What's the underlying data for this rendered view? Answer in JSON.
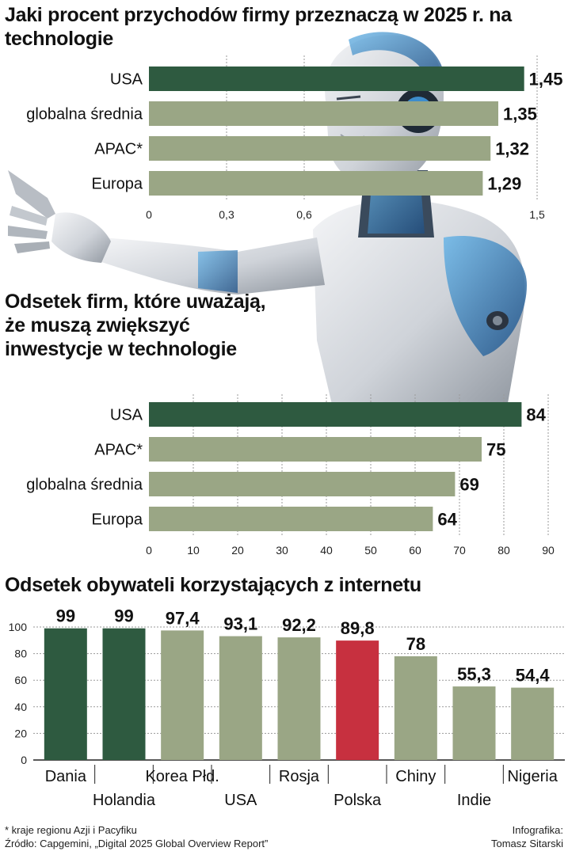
{
  "titles": {
    "chart1": "Jaki procent przychodów firmy przeznaczą w 2025 r. na technologie",
    "chart2": "Odsetek firm, które uważają, że muszą zwiększyć inwestycje w technologie",
    "chart3": "Odsetek obywateli korzystających z internetu"
  },
  "chart_data": [
    {
      "type": "bar",
      "orientation": "horizontal",
      "title": "Jaki procent przychodów firmy przeznaczą w 2025 r. na technologie",
      "categories": [
        "USA",
        "globalna średnia",
        "APAC*",
        "Europa"
      ],
      "values": [
        1.45,
        1.35,
        1.32,
        1.29
      ],
      "value_labels": [
        "1,45",
        "1,35",
        "1,32",
        "1,29"
      ],
      "xlim": [
        0,
        1.5
      ],
      "ticks": [
        0,
        0.3,
        0.6,
        1.5
      ],
      "tick_labels": [
        "0",
        "0,3",
        "0,6",
        "1,5"
      ],
      "highlight": [
        "USA"
      ]
    },
    {
      "type": "bar",
      "orientation": "horizontal",
      "title": "Odsetek firm, które uważają, że muszą zwiększyć inwestycje w technologie",
      "categories": [
        "USA",
        "APAC*",
        "globalna średnia",
        "Europa"
      ],
      "values": [
        84,
        75,
        69,
        64
      ],
      "value_labels": [
        "84",
        "75",
        "69",
        "64"
      ],
      "xlim": [
        0,
        90
      ],
      "ticks": [
        0,
        10,
        20,
        30,
        40,
        50,
        60,
        70,
        80,
        90
      ],
      "tick_labels": [
        "0",
        "10",
        "20",
        "30",
        "40",
        "50",
        "60",
        "70",
        "80",
        "90"
      ],
      "highlight": [
        "USA"
      ]
    },
    {
      "type": "bar",
      "orientation": "vertical",
      "title": "Odsetek obywateli korzystających z internetu",
      "categories": [
        "Dania",
        "Holandia",
        "Korea Płd.",
        "USA",
        "Rosja",
        "Polska",
        "Chiny",
        "Indie",
        "Nigeria"
      ],
      "values": [
        99,
        99,
        97.4,
        93.1,
        92.2,
        89.8,
        78,
        55.3,
        54.4
      ],
      "value_labels": [
        "99",
        "99",
        "97,4",
        "93,1",
        "92,2",
        "89,8",
        "78",
        "55,3",
        "54,4"
      ],
      "ylim": [
        0,
        100
      ],
      "ticks": [
        0,
        20,
        40,
        60,
        80,
        100
      ],
      "tick_labels": [
        "0",
        "20",
        "40",
        "60",
        "80",
        "100"
      ],
      "highlight": [
        "Dania",
        "Holandia"
      ],
      "accent": [
        "Polska"
      ]
    }
  ],
  "colors": {
    "dark": "#2e5a40",
    "light": "#9aa685",
    "accent": "#c7303f",
    "grid": "#9a9a9a"
  },
  "footer": {
    "note": "* kraje regionu Azji i Pacyfiku",
    "source": "Źródło: Capgemini, „Digital 2025 Global Overview Report”",
    "credit_line1": "Infografika:",
    "credit_line2": "Tomasz Sitarski"
  }
}
